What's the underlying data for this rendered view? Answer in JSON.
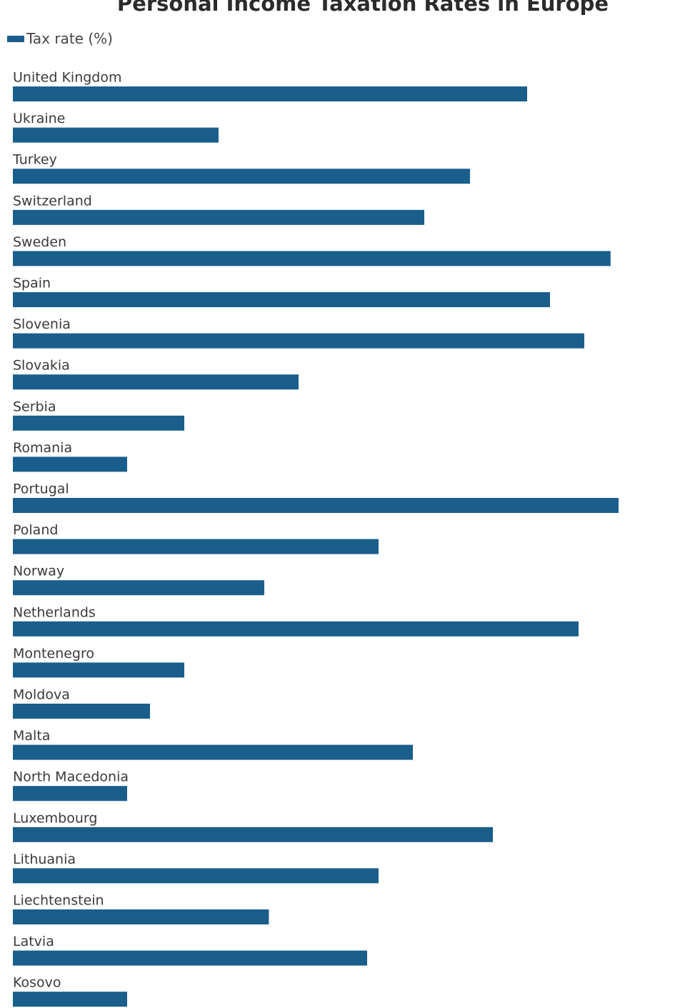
{
  "chart_data": {
    "type": "bar",
    "orientation": "horizontal",
    "title": "Personal Income Taxation Rates in Europe",
    "legend": "top-left",
    "series": [
      {
        "name": "Tax rate (%)",
        "color": "#1a5e8c",
        "values": [
          45,
          18,
          40,
          36,
          52.3,
          47,
          50,
          25,
          15,
          10,
          53,
          32,
          22,
          49.5,
          15,
          12,
          35,
          10,
          42,
          32,
          22.4,
          31,
          10
        ]
      }
    ],
    "categories": [
      "United Kingdom",
      "Ukraine",
      "Turkey",
      "Switzerland",
      "Sweden",
      "Spain",
      "Slovenia",
      "Slovakia",
      "Serbia",
      "Romania",
      "Portugal",
      "Poland",
      "Norway",
      "Netherlands",
      "Montenegro",
      "Moldova",
      "Malta",
      "North Macedonia",
      "Luxembourg",
      "Lithuania",
      "Liechtenstein",
      "Latvia",
      "Kosovo"
    ],
    "xlim": [
      0,
      56
    ],
    "grid": false,
    "xlabel": "",
    "ylabel": ""
  }
}
